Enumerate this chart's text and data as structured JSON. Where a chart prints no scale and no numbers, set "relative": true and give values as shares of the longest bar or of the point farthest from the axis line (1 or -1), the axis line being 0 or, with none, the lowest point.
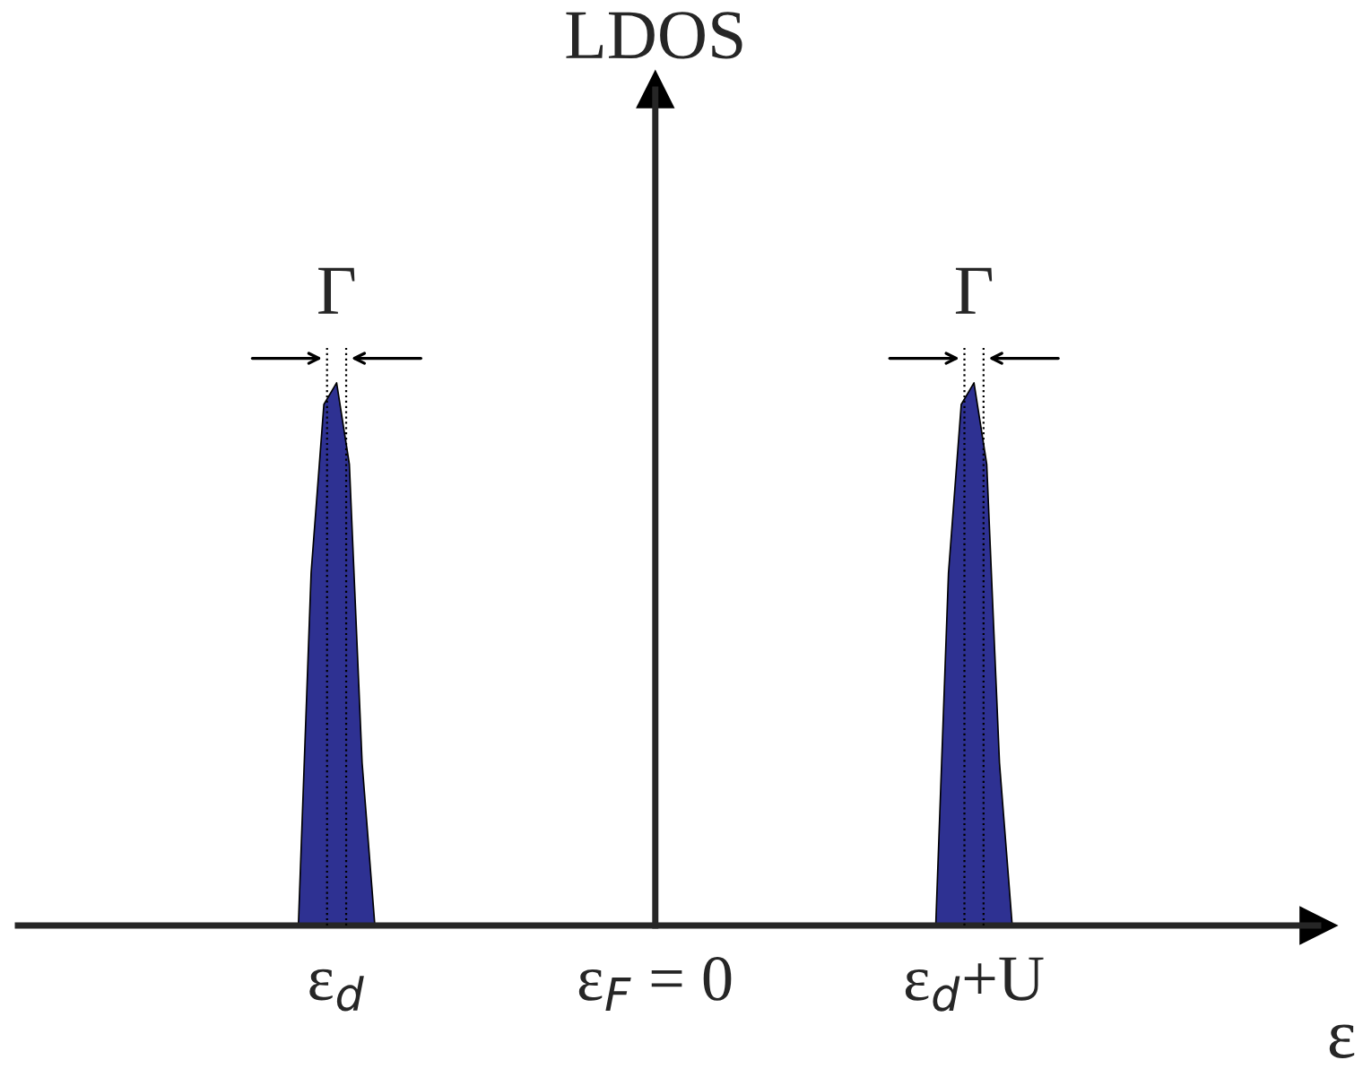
{
  "chart_data": {
    "type": "area",
    "relative": true,
    "ylabel": "LDOS",
    "xlabel": "ε",
    "categories": [
      null,
      null,
      null,
      null,
      null,
      null,
      null,
      null,
      null,
      null,
      null,
      null,
      null,
      null,
      null,
      null,
      null,
      null,
      null,
      null,
      null,
      null,
      null,
      null,
      null,
      "ε$_{d}$",
      null,
      null,
      null,
      null,
      null,
      null,
      null,
      null,
      null,
      null,
      null,
      null,
      null,
      null,
      null,
      null,
      null,
      null,
      null,
      null,
      null,
      null,
      null,
      null,
      "ε$_{F}$ = 0",
      null,
      null,
      null,
      null,
      null,
      null,
      null,
      null,
      null,
      null,
      null,
      null,
      null,
      null,
      null,
      null,
      null,
      null,
      null,
      null,
      null,
      null,
      null,
      null,
      "ε$_{d}$+U",
      null,
      null,
      null,
      null,
      null,
      null,
      null,
      null,
      null,
      null,
      null,
      null,
      null,
      null,
      null,
      null,
      null,
      null,
      null,
      null,
      null,
      null,
      null,
      null,
      null,
      null,
      null
    ],
    "series": [
      {
        "color": "#2e3192",
        "values": [
          0,
          0,
          0,
          0,
          0,
          0,
          0,
          0,
          0,
          0,
          0,
          0,
          0,
          0,
          0,
          0,
          0,
          0,
          0,
          0,
          0,
          0,
          0,
          0.65,
          0.96,
          1.0,
          0.85,
          0.3,
          0,
          0,
          0,
          0,
          0,
          0,
          0,
          0,
          0,
          0,
          0,
          0,
          0,
          0,
          0,
          0,
          0,
          0,
          0,
          0,
          0,
          0,
          0,
          0,
          0,
          0,
          0,
          0,
          0,
          0,
          0,
          0,
          0,
          0,
          0,
          0,
          0,
          0,
          0,
          0,
          0,
          0,
          0,
          0,
          0,
          0.65,
          0.96,
          1.0,
          0.85,
          0.3,
          0,
          0,
          0,
          0,
          0,
          0,
          0,
          0,
          0,
          0,
          0,
          0,
          0,
          0,
          0,
          0,
          0,
          0,
          0,
          0,
          0,
          0,
          0,
          null,
          null
        ]
      }
    ],
    "tick_labels": "x",
    "annotations": [
      {
        "text": "Γ",
        "x": "ε$_{d}$",
        "y": 1
      },
      {
        "text": "Γ",
        "x": "ε$_{d}$+U",
        "y": 1
      }
    ]
  }
}
